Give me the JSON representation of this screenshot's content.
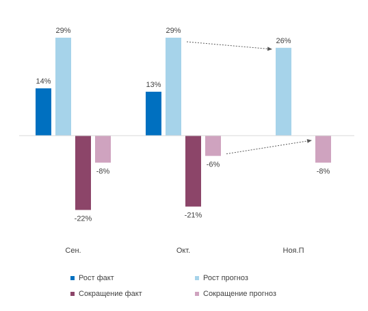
{
  "chart_data": {
    "type": "bar",
    "categories": [
      "Сен.",
      "Окт.",
      "Ноя.П"
    ],
    "series": [
      {
        "name": "Рост факт",
        "values": [
          14,
          13,
          null
        ],
        "color": "#0070c0"
      },
      {
        "name": "Рост прогноз",
        "values": [
          29,
          29,
          26
        ],
        "color": "#a6d3ea"
      },
      {
        "name": "Сокращение факт",
        "values": [
          -22,
          -21,
          null
        ],
        "color": "#8c4569"
      },
      {
        "name": "Сокращение прогноз",
        "values": [
          -8,
          -6,
          -8
        ],
        "color": "#cfa3bf"
      }
    ],
    "value_suffix": "%",
    "ylim": [
      -30,
      30
    ],
    "legend_position": "bottom",
    "grid": false,
    "annotations": [
      {
        "type": "dotted-arrow",
        "series": "Рост прогноз",
        "from_category": "Окт.",
        "to_category": "Ноя.П"
      },
      {
        "type": "dotted-arrow",
        "series": "Сокращение прогноз",
        "from_category": "Окт.",
        "to_category": "Ноя.П"
      }
    ]
  }
}
